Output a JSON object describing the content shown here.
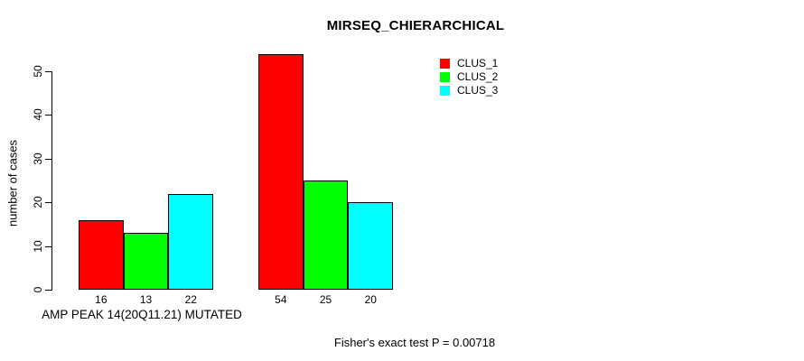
{
  "chart_data": {
    "type": "bar",
    "title": "MIRSEQ_CHIERARCHICAL",
    "ylabel": "number of cases",
    "xlabel": "AMP PEAK 14(20Q11.21) MUTATED",
    "annotation": "Fisher's exact test P = 0.00718",
    "ylim": [
      0,
      55
    ],
    "yticks": [
      0,
      10,
      20,
      30,
      40,
      50
    ],
    "grid": false,
    "value_labels_shown": true,
    "legend_position": "topright",
    "series": [
      {
        "name": "CLUS_1",
        "color": "#ff0000",
        "values": [
          16,
          54
        ]
      },
      {
        "name": "CLUS_2",
        "color": "#00ff00",
        "values": [
          13,
          25
        ]
      },
      {
        "name": "CLUS_3",
        "color": "#00ffff",
        "values": [
          22,
          20
        ]
      }
    ]
  }
}
